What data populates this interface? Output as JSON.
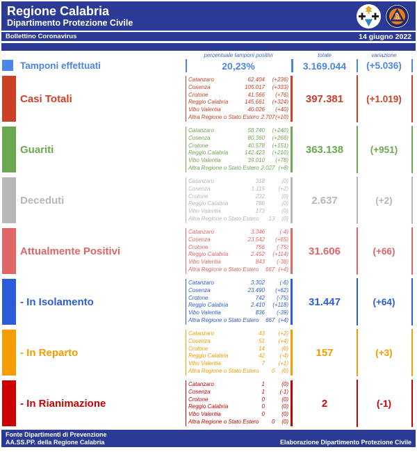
{
  "header": {
    "title": "Regione Calabria",
    "subtitle": "Dipartimento Protezione Civile",
    "bulletin_label": "Bollettino Coronavirus",
    "date": "14 giugno 2022"
  },
  "theme": {
    "header_blue": "#2b3a94",
    "column_header_blue": "#3a66c8"
  },
  "columns": {
    "percent": "percentuale tamponi positivi",
    "total": "totale",
    "variation": "variazione"
  },
  "tamponi": {
    "label": "Tamponi effettuati",
    "percent": "20,23%",
    "total": "3.169.044",
    "variation": "(+5.036)",
    "color": "#4a86e8"
  },
  "categories": [
    {
      "id": "casi-totali",
      "label": "Casi Totali",
      "color": "#cc4125",
      "total": "397.381",
      "variation": "(+1.019)",
      "details": [
        {
          "name": "Catanzaro",
          "value": "62.404",
          "delta": "(+236)"
        },
        {
          "name": "Cosenza",
          "value": "105.017",
          "delta": "(+333)"
        },
        {
          "name": "Crotone",
          "value": "41.566",
          "delta": "(+76)"
        },
        {
          "name": "Reggio Calabria",
          "value": "145.661",
          "delta": "(+324)"
        },
        {
          "name": "Vibo Valentia",
          "value": "40.026",
          "delta": "(+40)"
        },
        {
          "name": "Altra Regione o Stato Estero",
          "value": "2.707",
          "delta": "(+10)"
        }
      ]
    },
    {
      "id": "guariti",
      "label": "Guariti",
      "color": "#6aa84f",
      "total": "363.138",
      "variation": "(+951)",
      "details": [
        {
          "name": "Catanzaro",
          "value": "58.740",
          "delta": "(+240)"
        },
        {
          "name": "Cosenza",
          "value": "80.360",
          "delta": "(+266)"
        },
        {
          "name": "Crotone",
          "value": "40.578",
          "delta": "(+151)"
        },
        {
          "name": "Reggio Calabria",
          "value": "142.423",
          "delta": "(+210)"
        },
        {
          "name": "Vibo Valentia",
          "value": "39.010",
          "delta": "(+78)"
        },
        {
          "name": "Altra Regione o Stato Estero",
          "value": "2.027",
          "delta": "(+6)"
        }
      ]
    },
    {
      "id": "deceduti",
      "label": "Deceduti",
      "color": "#b7b7b7",
      "total": "2.637",
      "variation": "(+2)",
      "details": [
        {
          "name": "Catanzaro",
          "value": "318",
          "delta": "(0)"
        },
        {
          "name": "Cosenza",
          "value": "1.115",
          "delta": "(+2)"
        },
        {
          "name": "Crotone",
          "value": "232",
          "delta": "(0)"
        },
        {
          "name": "Reggio Calabria",
          "value": "786",
          "delta": "(0)"
        },
        {
          "name": "Vibo Valentia",
          "value": "173",
          "delta": "(0)"
        },
        {
          "name": "Altra Regione o Stato Estero",
          "value": "13",
          "delta": "(0)"
        }
      ]
    },
    {
      "id": "attualmente-positivi",
      "label": "Attualmente Positivi",
      "color": "#e06666",
      "total": "31.606",
      "variation": "(+66)",
      "details": [
        {
          "name": "Catanzaro",
          "value": "3.346",
          "delta": "(-4)"
        },
        {
          "name": "Cosenza",
          "value": "23.542",
          "delta": "(+65)"
        },
        {
          "name": "Crotone",
          "value": "756",
          "delta": "(-75)"
        },
        {
          "name": "Reggio Calabria",
          "value": "2.452",
          "delta": "(+114)"
        },
        {
          "name": "Vibo Valentia",
          "value": "843",
          "delta": "(-38)"
        },
        {
          "name": "Altra Regione o Stato Estero",
          "value": "667",
          "delta": "(+4)"
        }
      ]
    },
    {
      "id": "in-isolamento",
      "label": "- In Isolamento",
      "color": "#2b5cd9",
      "total": "31.447",
      "variation": "(+64)",
      "details": [
        {
          "name": "Catanzaro",
          "value": "3.302",
          "delta": "(-6)"
        },
        {
          "name": "Cosenza",
          "value": "23.490",
          "delta": "(+62)"
        },
        {
          "name": "Crotone",
          "value": "742",
          "delta": "(-75)"
        },
        {
          "name": "Reggio Calabria",
          "value": "2.410",
          "delta": "(+118)"
        },
        {
          "name": "Vibo Valentia",
          "value": "836",
          "delta": "(-39)"
        },
        {
          "name": "Altra Regione o Stato Estero",
          "value": "667",
          "delta": "(+4)"
        }
      ]
    },
    {
      "id": "in-reparto",
      "label": "- In Reparto",
      "color": "#f69b00",
      "total": "157",
      "variation": "(+3)",
      "details": [
        {
          "name": "Catanzaro",
          "value": "43",
          "delta": "(+2)"
        },
        {
          "name": "Cosenza",
          "value": "51",
          "delta": "(+4)"
        },
        {
          "name": "Crotone",
          "value": "14",
          "delta": "(0)"
        },
        {
          "name": "Reggio Calabria",
          "value": "42",
          "delta": "(-4)"
        },
        {
          "name": "Vibo Valentia",
          "value": "7",
          "delta": "(+1)"
        },
        {
          "name": "Altra Regione o Stato Estero",
          "value": "0",
          "delta": "(0)"
        }
      ]
    },
    {
      "id": "in-rianimazione",
      "label": "- In Rianimazione",
      "color": "#cc0000",
      "total": "2",
      "variation": "(-1)",
      "details": [
        {
          "name": "Catanzaro",
          "value": "1",
          "delta": "(0)"
        },
        {
          "name": "Cosenza",
          "value": "1",
          "delta": "(-1)"
        },
        {
          "name": "Crotone",
          "value": "0",
          "delta": "(0)"
        },
        {
          "name": "Reggio Calabria",
          "value": "0",
          "delta": "(0)"
        },
        {
          "name": "Vibo Valentia",
          "value": "0",
          "delta": "(0)"
        },
        {
          "name": "Altra Regione o Stato Estero",
          "value": "0",
          "delta": "(0)"
        }
      ]
    }
  ],
  "icons": [
    {
      "name": "regione-calabria-logo"
    },
    {
      "name": "protezione-civile-logo"
    }
  ],
  "footer": {
    "source_line1": "Fonte Dipartimenti di Prevenzione",
    "source_line2": "AA.SS.PP.  della Regione Calabria",
    "elaboration": "Elaborazione Dipartimento Protezione Civile"
  }
}
